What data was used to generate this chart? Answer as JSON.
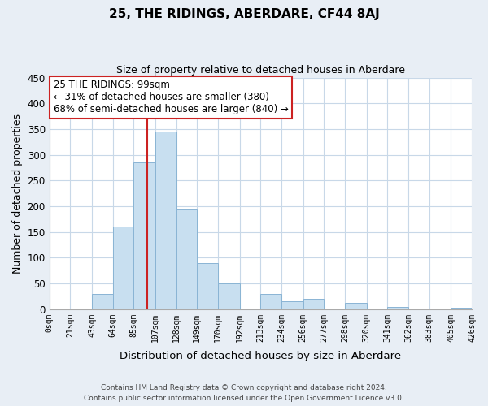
{
  "title": "25, THE RIDINGS, ABERDARE, CF44 8AJ",
  "subtitle": "Size of property relative to detached houses in Aberdare",
  "xlabel": "Distribution of detached houses by size in Aberdare",
  "ylabel": "Number of detached properties",
  "bar_color": "#c8dff0",
  "bar_edge_color": "#8ab4d4",
  "bin_labels": [
    "0sqm",
    "21sqm",
    "43sqm",
    "64sqm",
    "85sqm",
    "107sqm",
    "128sqm",
    "149sqm",
    "170sqm",
    "192sqm",
    "213sqm",
    "234sqm",
    "256sqm",
    "277sqm",
    "298sqm",
    "320sqm",
    "341sqm",
    "362sqm",
    "383sqm",
    "405sqm",
    "426sqm"
  ],
  "bin_edges": [
    0,
    21,
    43,
    64,
    85,
    107,
    128,
    149,
    170,
    192,
    213,
    234,
    256,
    277,
    298,
    320,
    341,
    362,
    383,
    405,
    426
  ],
  "bar_heights": [
    0,
    0,
    30,
    160,
    285,
    345,
    193,
    90,
    50,
    0,
    30,
    15,
    20,
    0,
    12,
    0,
    5,
    0,
    0,
    3
  ],
  "property_value": 99,
  "property_line_color": "#cc2222",
  "ylim": [
    0,
    450
  ],
  "yticks": [
    0,
    50,
    100,
    150,
    200,
    250,
    300,
    350,
    400,
    450
  ],
  "annotation_line1": "25 THE RIDINGS: 99sqm",
  "annotation_line2": "← 31% of detached houses are smaller (380)",
  "annotation_line3": "68% of semi-detached houses are larger (840) →",
  "annotation_box_color": "#ffffff",
  "annotation_box_edge": "#cc2222",
  "footer_line1": "Contains HM Land Registry data © Crown copyright and database right 2024.",
  "footer_line2": "Contains public sector information licensed under the Open Government Licence v3.0.",
  "background_color": "#e8eef5",
  "plot_bg_color": "#ffffff",
  "grid_color": "#c8d8e8"
}
